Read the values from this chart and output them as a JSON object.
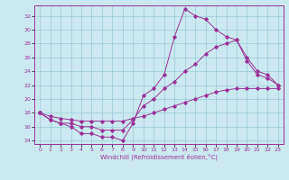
{
  "xlabel": "Windchill (Refroidissement éolien,°C)",
  "bg_color": "#cce8f0",
  "line_color": "#993399",
  "grid_color": "#99ccdd",
  "xlim": [
    -0.5,
    23.5
  ],
  "ylim": [
    13.5,
    33.5
  ],
  "xticks": [
    0,
    1,
    2,
    3,
    4,
    5,
    6,
    7,
    8,
    9,
    10,
    11,
    12,
    13,
    14,
    15,
    16,
    17,
    18,
    19,
    20,
    21,
    22,
    23
  ],
  "yticks": [
    14,
    16,
    18,
    20,
    22,
    24,
    26,
    28,
    30,
    32
  ],
  "series1_x": [
    0,
    1,
    2,
    3,
    4,
    5,
    6,
    7,
    8,
    9,
    10,
    11,
    12,
    13,
    14,
    15,
    16,
    17,
    18,
    19,
    20,
    21,
    22,
    23
  ],
  "series1_y": [
    18,
    17,
    16.5,
    16,
    15,
    15,
    14.5,
    14.5,
    14,
    16.5,
    20.5,
    21.5,
    23.5,
    29,
    33,
    32,
    31.5,
    30,
    29,
    28.5,
    25.5,
    23.5,
    23,
    22
  ],
  "series2_x": [
    0,
    1,
    2,
    3,
    4,
    5,
    6,
    7,
    8,
    9,
    10,
    11,
    12,
    13,
    14,
    15,
    16,
    17,
    18,
    19,
    20,
    21,
    22,
    23
  ],
  "series2_y": [
    18,
    17,
    16.5,
    16.5,
    16,
    16,
    15.5,
    15.5,
    15.5,
    17,
    19,
    20,
    21.5,
    22.5,
    24,
    25,
    26.5,
    27.5,
    28,
    28.5,
    26,
    24,
    23.5,
    22
  ],
  "series3_x": [
    0,
    1,
    2,
    3,
    4,
    5,
    6,
    7,
    8,
    9,
    10,
    11,
    12,
    13,
    14,
    15,
    16,
    17,
    18,
    19,
    20,
    21,
    22,
    23
  ],
  "series3_y": [
    18,
    17.5,
    17.2,
    17.0,
    16.8,
    16.8,
    16.8,
    16.8,
    16.8,
    17.2,
    17.5,
    18.0,
    18.5,
    19.0,
    19.5,
    20.0,
    20.5,
    21.0,
    21.3,
    21.5,
    21.5,
    21.5,
    21.5,
    21.5
  ]
}
